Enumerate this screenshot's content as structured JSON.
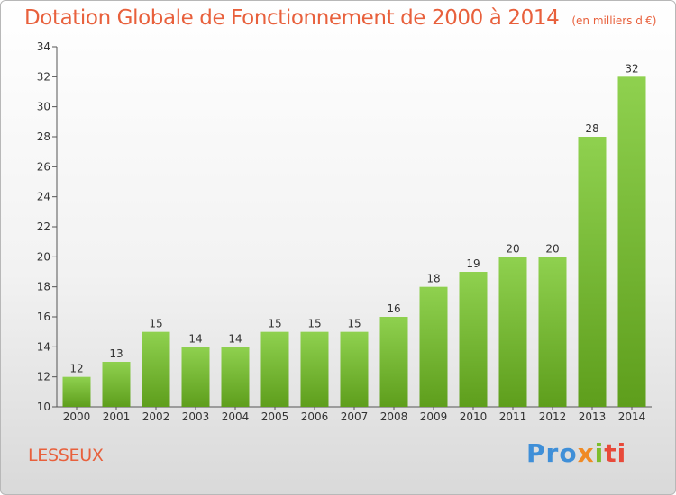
{
  "title": "Dotation Globale de Fonctionnement de 2000 à 2014",
  "unit": "(en milliers d'€)",
  "commune": "LESSEUX",
  "logo": {
    "p1": "Pro",
    "p2": "x",
    "p3": "i",
    "p4": "ti"
  },
  "colors": {
    "bar_top": "#8fd14f",
    "bar_bottom": "#5e9e1c",
    "title": "#e8603c"
  },
  "chart_data": {
    "type": "bar",
    "title": "Dotation Globale de Fonctionnement de 2000 à 2014",
    "subtitle": "(en milliers d'€)",
    "categories": [
      "2000",
      "2001",
      "2002",
      "2003",
      "2004",
      "2005",
      "2006",
      "2007",
      "2008",
      "2009",
      "2010",
      "2011",
      "2012",
      "2013",
      "2014"
    ],
    "values": [
      12,
      13,
      15,
      14,
      14,
      15,
      15,
      15,
      16,
      18,
      19,
      20,
      20,
      28,
      32
    ],
    "ylim": [
      10,
      34
    ],
    "yticks": [
      10,
      12,
      14,
      16,
      18,
      20,
      22,
      24,
      26,
      28,
      30,
      32,
      34
    ],
    "grid": false,
    "legend": "none"
  }
}
